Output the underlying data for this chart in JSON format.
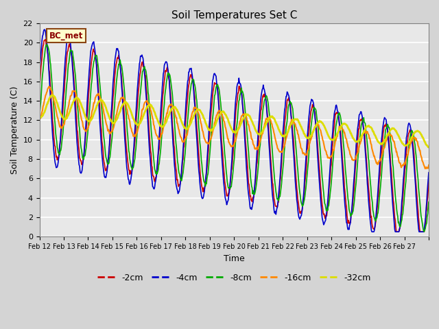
{
  "title": "Soil Temperatures Set C",
  "xlabel": "Time",
  "ylabel": "Soil Temperature (C)",
  "ylim": [
    0,
    22
  ],
  "yticks": [
    0,
    2,
    4,
    6,
    8,
    10,
    12,
    14,
    16,
    18,
    20,
    22
  ],
  "x_labels": [
    "Feb 12",
    "Feb 13",
    "Feb 14",
    "Feb 15",
    "Feb 16",
    "Feb 17",
    "Feb 18",
    "Feb 19",
    "Feb 20",
    "Feb 21",
    "Feb 22",
    "Feb 23",
    "Feb 24",
    "Feb 25",
    "Feb 26",
    "Feb 27"
  ],
  "annotation_text": "BC_met",
  "line_colors": {
    "-2cm": "#cc0000",
    "-4cm": "#0000cc",
    "-8cm": "#00aa00",
    "-16cm": "#ff8800",
    "-32cm": "#dddd00"
  },
  "line_widths": {
    "-2cm": 1.2,
    "-4cm": 1.2,
    "-8cm": 1.2,
    "-16cm": 1.5,
    "-32cm": 2.0
  },
  "figsize": [
    6.4,
    4.8
  ],
  "dpi": 100,
  "fig_bg": "#d4d4d4",
  "ax_bg": "#e8e8e8"
}
